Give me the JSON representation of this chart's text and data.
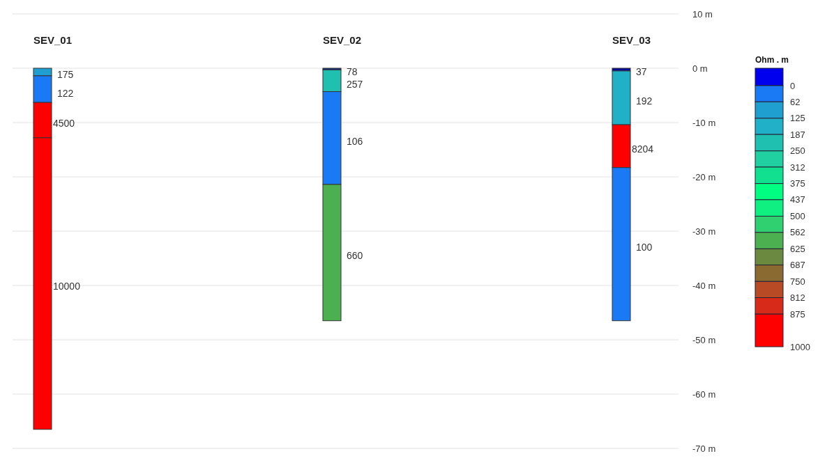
{
  "chart_data": {
    "type": "bar",
    "stacked": true,
    "categories": [
      "SEV_01",
      "SEV_02",
      "SEV_03"
    ],
    "series": [
      {
        "colors": [
          "#1f9fd0",
          "#102a8a",
          "#0a0a9a"
        ],
        "values": [
          -1.4,
          -0.3,
          -0.5
        ]
      },
      {
        "colors": [
          "#1a7af5",
          "#20c0b0",
          "#20b0c8"
        ],
        "values": [
          -4.9,
          -4.0,
          -9.9
        ]
      },
      {
        "colors": [
          "#ff0000",
          "#1a7af5",
          "#ff0000"
        ],
        "values": [
          -6.5,
          -17.1,
          -7.9
        ]
      },
      {
        "colors": [
          "#ff0000",
          "#4caf50",
          "#1a7af5"
        ],
        "values": [
          -53.7,
          -25.1,
          -28.2
        ]
      }
    ],
    "ylim": [
      -70,
      10
    ],
    "yticks": [
      {
        "value": 10,
        "label": "10 m"
      },
      {
        "value": 0,
        "label": "0 m"
      },
      {
        "value": -10,
        "label": "-10 m"
      },
      {
        "value": -20,
        "label": "-20 m"
      },
      {
        "value": -30,
        "label": "-30 m"
      },
      {
        "value": -40,
        "label": "-40 m"
      },
      {
        "value": -50,
        "label": "-50 m"
      },
      {
        "value": -60,
        "label": "-60 m"
      },
      {
        "value": -70,
        "label": "-70 m"
      }
    ],
    "grid": "y",
    "annotations": [
      {
        "text": "175",
        "x": "SEV_01",
        "y": -1.2
      },
      {
        "text": "122",
        "x": "SEV_01",
        "y": -4.6
      },
      {
        "text": "4500",
        "x": "SEV_01",
        "y": -10.2
      },
      {
        "text": "10000",
        "x": "SEV_01",
        "y": -40.1
      },
      {
        "text": "78",
        "x": "SEV_02",
        "y": -0.6
      },
      {
        "text": "257",
        "x": "SEV_02",
        "y": -3.0
      },
      {
        "text": "106",
        "x": "SEV_02",
        "y": -13.5
      },
      {
        "text": "660",
        "x": "SEV_02",
        "y": -34.5
      },
      {
        "text": "37",
        "x": "SEV_03",
        "y": -0.7
      },
      {
        "text": "192",
        "x": "SEV_03",
        "y": -6.1
      },
      {
        "text": "8204",
        "x": "SEV_03",
        "y": -14.9
      },
      {
        "text": "100",
        "x": "SEV_03",
        "y": -32.9
      }
    ],
    "clabel": "Ohm . m",
    "cticks": [
      0,
      62,
      125,
      187,
      250,
      312,
      375,
      437,
      500,
      562,
      625,
      687,
      750,
      812,
      875,
      1000
    ]
  }
}
